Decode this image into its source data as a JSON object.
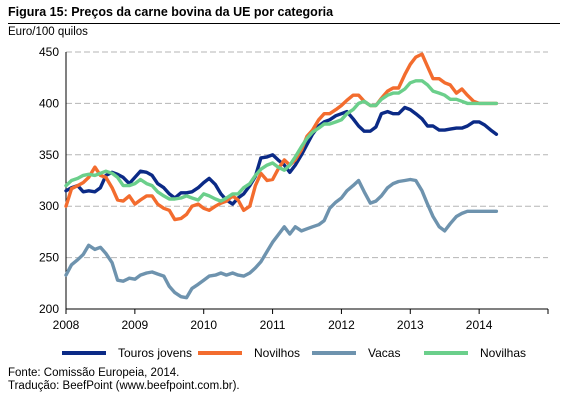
{
  "title": "Figura 15: Preços da carne bovina da UE por categoria",
  "unit_label": "Euro/100 quilos",
  "source": "Fonte: Comissão Europeia, 2014.",
  "translation": "Tradução: BeefPoint (www.beefpoint.com.br).",
  "chart_data": {
    "type": "line",
    "ylim": [
      200,
      450
    ],
    "xlim": [
      2008,
      2015
    ],
    "yticks": [
      200,
      250,
      300,
      350,
      400,
      450
    ],
    "xticks": [
      "2008",
      "2009",
      "2010",
      "2011",
      "2012",
      "2013",
      "2014"
    ],
    "grid": "horizontal",
    "legend_position": "bottom",
    "series": [
      {
        "name": "Touros jovens",
        "color": "#0B2A86",
        "x": [
          2008.0,
          2008.08,
          2008.17,
          2008.25,
          2008.33,
          2008.42,
          2008.5,
          2008.58,
          2008.67,
          2008.75,
          2008.83,
          2008.92,
          2009.0,
          2009.08,
          2009.17,
          2009.25,
          2009.33,
          2009.42,
          2009.5,
          2009.58,
          2009.67,
          2009.75,
          2009.83,
          2009.92,
          2010.0,
          2010.08,
          2010.17,
          2010.25,
          2010.33,
          2010.42,
          2010.5,
          2010.58,
          2010.67,
          2010.75,
          2010.83,
          2010.92,
          2011.0,
          2011.08,
          2011.17,
          2011.25,
          2011.33,
          2011.42,
          2011.5,
          2011.58,
          2011.67,
          2011.75,
          2011.83,
          2011.92,
          2012.0,
          2012.08,
          2012.17,
          2012.25,
          2012.33,
          2012.42,
          2012.5,
          2012.58,
          2012.67,
          2012.75,
          2012.83,
          2012.92,
          2013.0,
          2013.08,
          2013.17,
          2013.25,
          2013.33,
          2013.42,
          2013.5,
          2013.58,
          2013.67,
          2013.75,
          2013.83,
          2013.92,
          2014.0,
          2014.08,
          2014.17,
          2014.25
        ],
        "values": [
          315,
          318,
          320,
          314,
          315,
          314,
          318,
          330,
          333,
          331,
          328,
          322,
          328,
          334,
          333,
          330,
          322,
          318,
          312,
          308,
          313,
          313,
          314,
          318,
          323,
          327,
          321,
          312,
          306,
          302,
          308,
          312,
          320,
          329,
          347,
          348,
          350,
          345,
          340,
          333,
          340,
          350,
          360,
          370,
          378,
          382,
          384,
          388,
          390,
          392,
          385,
          378,
          373,
          373,
          377,
          390,
          392,
          390,
          390,
          396,
          394,
          390,
          385,
          378,
          378,
          374,
          374,
          375,
          376,
          376,
          378,
          382,
          382,
          379,
          374,
          370
        ]
      },
      {
        "name": "Novilhos",
        "color": "#F36C2E",
        "x": [
          2008.0,
          2008.08,
          2008.17,
          2008.25,
          2008.33,
          2008.42,
          2008.5,
          2008.58,
          2008.67,
          2008.75,
          2008.83,
          2008.92,
          2009.0,
          2009.08,
          2009.17,
          2009.25,
          2009.33,
          2009.42,
          2009.5,
          2009.58,
          2009.67,
          2009.75,
          2009.83,
          2009.92,
          2010.0,
          2010.08,
          2010.17,
          2010.25,
          2010.33,
          2010.42,
          2010.5,
          2010.58,
          2010.67,
          2010.75,
          2010.83,
          2010.92,
          2011.0,
          2011.08,
          2011.17,
          2011.25,
          2011.33,
          2011.42,
          2011.5,
          2011.58,
          2011.67,
          2011.75,
          2011.83,
          2011.92,
          2012.0,
          2012.08,
          2012.17,
          2012.25,
          2012.33,
          2012.42,
          2012.5,
          2012.58,
          2012.67,
          2012.75,
          2012.83,
          2012.92,
          2013.0,
          2013.08,
          2013.17,
          2013.25,
          2013.33,
          2013.42,
          2013.5,
          2013.58,
          2013.67,
          2013.75,
          2013.83,
          2013.92,
          2014.0,
          2014.08,
          2014.17,
          2014.25
        ],
        "values": [
          300,
          317,
          320,
          323,
          328,
          338,
          330,
          328,
          318,
          306,
          305,
          310,
          302,
          306,
          310,
          310,
          302,
          298,
          296,
          287,
          288,
          292,
          300,
          302,
          298,
          296,
          300,
          303,
          305,
          310,
          306,
          296,
          300,
          320,
          332,
          325,
          326,
          336,
          345,
          340,
          345,
          355,
          368,
          374,
          384,
          390,
          390,
          394,
          398,
          403,
          408,
          408,
          402,
          398,
          398,
          405,
          412,
          415,
          415,
          428,
          438,
          445,
          448,
          436,
          424,
          424,
          420,
          418,
          410,
          414,
          408,
          402,
          400,
          400,
          400,
          400
        ]
      },
      {
        "name": "Vacas",
        "color": "#6E93AE",
        "x": [
          2008.0,
          2008.08,
          2008.17,
          2008.25,
          2008.33,
          2008.42,
          2008.5,
          2008.58,
          2008.67,
          2008.75,
          2008.83,
          2008.92,
          2009.0,
          2009.08,
          2009.17,
          2009.25,
          2009.33,
          2009.42,
          2009.5,
          2009.58,
          2009.67,
          2009.75,
          2009.83,
          2009.92,
          2010.0,
          2010.08,
          2010.17,
          2010.25,
          2010.33,
          2010.42,
          2010.5,
          2010.58,
          2010.67,
          2010.75,
          2010.83,
          2010.92,
          2011.0,
          2011.08,
          2011.17,
          2011.25,
          2011.33,
          2011.42,
          2011.5,
          2011.58,
          2011.67,
          2011.75,
          2011.83,
          2011.92,
          2012.0,
          2012.08,
          2012.17,
          2012.25,
          2012.33,
          2012.42,
          2012.5,
          2012.58,
          2012.67,
          2012.75,
          2012.83,
          2012.92,
          2013.0,
          2013.08,
          2013.17,
          2013.25,
          2013.33,
          2013.42,
          2013.5,
          2013.58,
          2013.67,
          2013.75,
          2013.83,
          2013.92,
          2014.0,
          2014.08,
          2014.17,
          2014.25
        ],
        "values": [
          233,
          243,
          248,
          253,
          262,
          258,
          260,
          254,
          245,
          228,
          227,
          230,
          229,
          233,
          235,
          236,
          234,
          232,
          222,
          216,
          212,
          211,
          220,
          224,
          228,
          232,
          233,
          235,
          233,
          235,
          233,
          232,
          235,
          240,
          246,
          256,
          265,
          272,
          280,
          273,
          280,
          276,
          278,
          280,
          282,
          286,
          298,
          304,
          308,
          315,
          320,
          325,
          314,
          303,
          305,
          310,
          318,
          322,
          324,
          325,
          326,
          325,
          315,
          302,
          290,
          280,
          276,
          283,
          290,
          293,
          295,
          295,
          295,
          295,
          295,
          295
        ]
      },
      {
        "name": "Novilhas",
        "color": "#6BCF8B",
        "x": [
          2008.0,
          2008.08,
          2008.17,
          2008.25,
          2008.33,
          2008.42,
          2008.5,
          2008.58,
          2008.67,
          2008.75,
          2008.83,
          2008.92,
          2009.0,
          2009.08,
          2009.17,
          2009.25,
          2009.33,
          2009.42,
          2009.5,
          2009.58,
          2009.67,
          2009.75,
          2009.83,
          2009.92,
          2010.0,
          2010.08,
          2010.17,
          2010.25,
          2010.33,
          2010.42,
          2010.5,
          2010.58,
          2010.67,
          2010.75,
          2010.83,
          2010.92,
          2011.0,
          2011.08,
          2011.17,
          2011.25,
          2011.33,
          2011.42,
          2011.5,
          2011.58,
          2011.67,
          2011.75,
          2011.83,
          2011.92,
          2012.0,
          2012.08,
          2012.17,
          2012.25,
          2012.33,
          2012.42,
          2012.5,
          2012.58,
          2012.67,
          2012.75,
          2012.83,
          2012.92,
          2013.0,
          2013.08,
          2013.17,
          2013.25,
          2013.33,
          2013.42,
          2013.5,
          2013.58,
          2013.67,
          2013.75,
          2013.83,
          2013.92,
          2014.0,
          2014.08,
          2014.17,
          2014.25
        ],
        "values": [
          320,
          325,
          327,
          330,
          331,
          330,
          332,
          334,
          332,
          328,
          320,
          320,
          322,
          326,
          322,
          320,
          314,
          310,
          307,
          307,
          308,
          310,
          308,
          306,
          312,
          310,
          307,
          305,
          308,
          312,
          312,
          318,
          322,
          330,
          336,
          340,
          342,
          338,
          335,
          340,
          348,
          358,
          366,
          372,
          376,
          380,
          380,
          382,
          384,
          390,
          394,
          400,
          402,
          398,
          398,
          404,
          408,
          410,
          410,
          414,
          420,
          422,
          422,
          418,
          412,
          410,
          408,
          404,
          404,
          402,
          400,
          400,
          400,
          400,
          400,
          400
        ]
      }
    ]
  }
}
